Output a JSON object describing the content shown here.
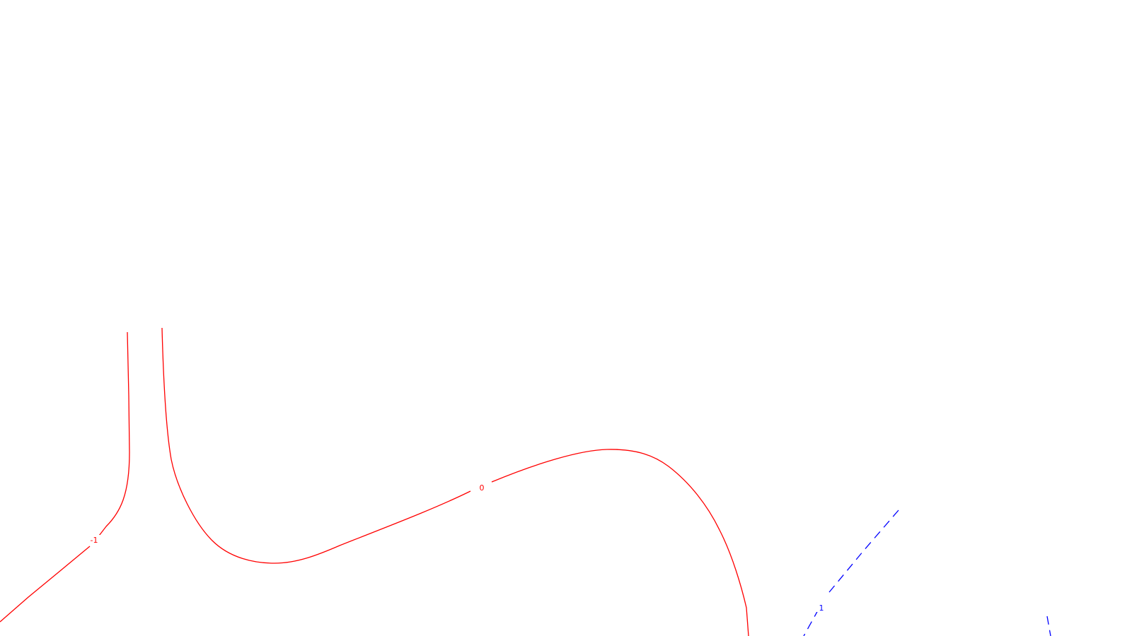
{
  "contours": [
    {
      "id": "contour-minus-1",
      "level_label": "-1",
      "color": "#ff0000",
      "dashed": false
    },
    {
      "id": "contour-0",
      "level_label": "0",
      "color": "#ff0000",
      "dashed": false
    },
    {
      "id": "contour-1",
      "level_label": "1",
      "color": "#0000ff",
      "dashed": true
    }
  ]
}
